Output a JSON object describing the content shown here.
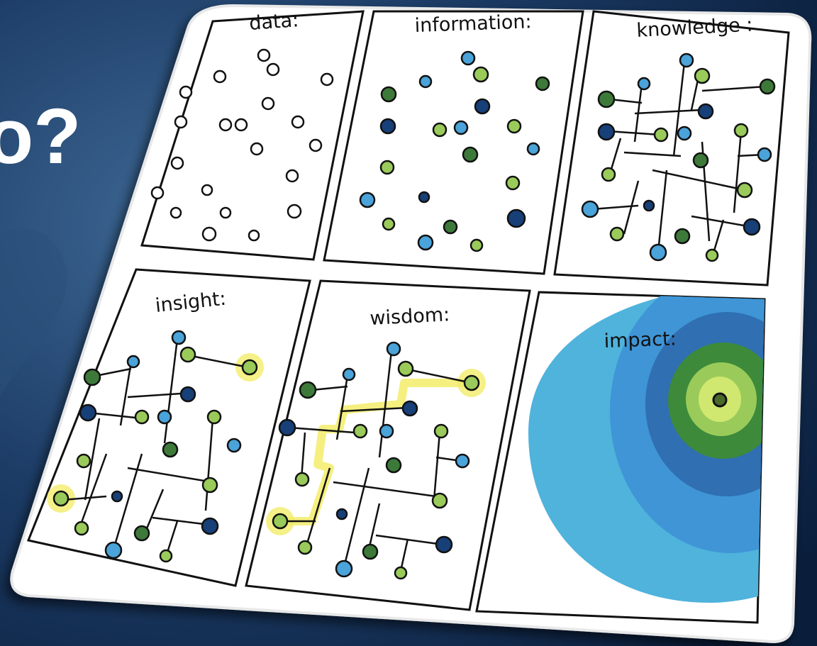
{
  "slide": {
    "heading_fragment": "o?"
  },
  "panels": [
    {
      "label": "data:"
    },
    {
      "label": "information:"
    },
    {
      "label": "knowledge :"
    },
    {
      "label": "insight:"
    },
    {
      "label": "wisdom:"
    },
    {
      "label": "impact:"
    }
  ]
}
